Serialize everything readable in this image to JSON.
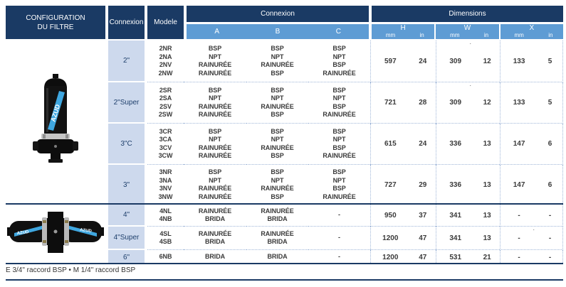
{
  "header": {
    "config_line1": "CONFIGURATION",
    "config_line2": "DU FILTRE",
    "connexion": "Connexion",
    "modele": "Modele",
    "connexion_group": "Connexion",
    "conn_cols": [
      "A",
      "B",
      "C"
    ],
    "dimensions_group": "Dimensions",
    "dim_cols": [
      "H",
      "W",
      "X"
    ],
    "unit_mm": "mm",
    "unit_in": "in"
  },
  "colors": {
    "navy": "#1a3a64",
    "light_blue": "#5e9cd4",
    "row_label_bg": "#cdd9ed",
    "stripe_blue": "#3fa7e0"
  },
  "product": {
    "brand": "AZUD"
  },
  "rows": [
    {
      "connexion": "2\"",
      "models": [
        "2NR",
        "2NA",
        "2NV",
        "2NW"
      ],
      "a": [
        "BSP",
        "NPT",
        "RAINURÉE",
        "RAINURÉE"
      ],
      "b": [
        "BSP",
        "NPT",
        "RAINURÉE",
        "BSP"
      ],
      "c": [
        "BSP",
        "NPT",
        "BSP",
        "RAINURÉE"
      ],
      "h": {
        "mm": "597",
        "in": "24"
      },
      "w": {
        "mm": "309",
        "in": "12",
        "mark": "·"
      },
      "x": {
        "mm": "133",
        "in": "5"
      },
      "section_end": false
    },
    {
      "connexion": "2\"Super",
      "models": [
        "2SR",
        "2SA",
        "2SV",
        "2SW"
      ],
      "a": [
        "BSP",
        "NPT",
        "RAINURÉE",
        "RAINURÉE"
      ],
      "b": [
        "BSP",
        "NPT",
        "RAINURÉE",
        "BSP"
      ],
      "c": [
        "BSP",
        "NPT",
        "BSP",
        "RAINURÉE"
      ],
      "h": {
        "mm": "721",
        "in": "28"
      },
      "w": {
        "mm": "309",
        "in": "12",
        "mark": "·"
      },
      "x": {
        "mm": "133",
        "in": "5"
      },
      "section_end": false
    },
    {
      "connexion": "3\"C",
      "models": [
        "3CR",
        "3CA",
        "3CV",
        "3CW"
      ],
      "a": [
        "BSP",
        "NPT",
        "RAINURÉE",
        "RAINURÉE"
      ],
      "b": [
        "BSP",
        "NPT",
        "RAINURÉE",
        "BSP"
      ],
      "c": [
        "BSP",
        "NPT",
        "BSP",
        "RAINURÉE"
      ],
      "h": {
        "mm": "615",
        "in": "24"
      },
      "w": {
        "mm": "336",
        "in": "13"
      },
      "x": {
        "mm": "147",
        "in": "6"
      },
      "section_end": false
    },
    {
      "connexion": "3\"",
      "models": [
        "3NR",
        "3NA",
        "3NV",
        "3NW"
      ],
      "a": [
        "BSP",
        "NPT",
        "RAINURÉE",
        "RAINURÉE"
      ],
      "b": [
        "BSP",
        "NPT",
        "RAINURÉE",
        "BSP"
      ],
      "c": [
        "BSP",
        "NPT",
        "BSP",
        "RAINURÉE"
      ],
      "h": {
        "mm": "727",
        "in": "29"
      },
      "w": {
        "mm": "336",
        "in": "13"
      },
      "x": {
        "mm": "147",
        "in": "6"
      },
      "section_end": true
    },
    {
      "connexion": "4\"",
      "models": [
        "4NL",
        "4NB"
      ],
      "a": [
        "RAINURÉE",
        "BRIDA"
      ],
      "b": [
        "RAINURÉE",
        "BRIDA"
      ],
      "c": [
        "-"
      ],
      "h": {
        "mm": "950",
        "in": "37"
      },
      "w": {
        "mm": "341",
        "in": "13"
      },
      "x": {
        "mm": "-",
        "in": "-"
      },
      "section_end": false
    },
    {
      "connexion": "4\"Super",
      "models": [
        "4SL",
        "4SB"
      ],
      "a": [
        "RAINURÉE",
        "BRIDA"
      ],
      "b": [
        "RAINURÉE",
        "BRIDA"
      ],
      "c": [
        "-"
      ],
      "h": {
        "mm": "1200",
        "in": "47"
      },
      "w": {
        "mm": "341",
        "in": "13"
      },
      "x": {
        "mm": "-",
        "in": "-",
        "mark": "·"
      },
      "section_end": false
    },
    {
      "connexion": "6\"",
      "models": [
        "6NB"
      ],
      "a": [
        "BRIDA"
      ],
      "b": [
        "BRIDA"
      ],
      "c": [
        "-"
      ],
      "h": {
        "mm": "1200",
        "in": "47"
      },
      "w": {
        "mm": "531",
        "in": "21"
      },
      "x": {
        "mm": "-",
        "in": "-"
      },
      "section_end": true
    }
  ],
  "footer": {
    "note": "E 3/4\" raccord BSP • M 1/4\" raccord BSP"
  }
}
